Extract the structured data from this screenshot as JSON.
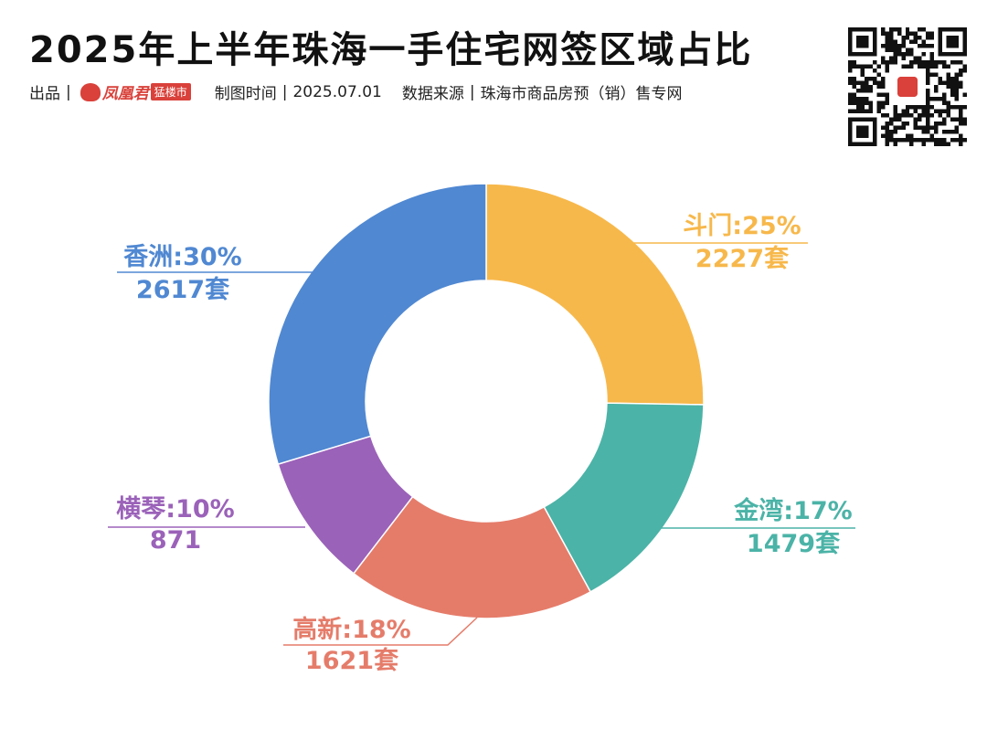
{
  "header": {
    "title": "2025年上半年珠海一手住宅网签区域占比",
    "producer_label": "出品",
    "logo_text": "凤凰君",
    "logo_tag": "猛楼市",
    "made_time_label": "制图时间",
    "made_time": "2025.07.01",
    "source_label": "数据来源",
    "source": "珠海市商品房预（销）售专网",
    "separator": "|"
  },
  "colors": {
    "doumen": "#F7B84B",
    "jinwan": "#4BB3A7",
    "gaoxin": "#E57C6A",
    "hengqin": "#9B62B9",
    "xiangzhou": "#5088D2"
  },
  "chart_data": {
    "type": "pie",
    "donut": true,
    "title": "2025年上半年珠海一手住宅网签区域占比",
    "slices": [
      {
        "name": "斗门",
        "percent_label": "25%",
        "units": 2227,
        "units_label": "2227套",
        "color_key": "doumen"
      },
      {
        "name": "金湾",
        "percent_label": "17%",
        "units": 1479,
        "units_label": "1479套",
        "color_key": "jinwan"
      },
      {
        "name": "高新",
        "percent_label": "18%",
        "units": 1621,
        "units_label": "1621套",
        "color_key": "gaoxin"
      },
      {
        "name": "横琴",
        "percent_label": "10%",
        "units": 871,
        "units_label": "871",
        "color_key": "hengqin"
      },
      {
        "name": "香洲",
        "percent_label": "30%",
        "units": 2617,
        "units_label": "2617套",
        "color_key": "xiangzhou"
      }
    ]
  }
}
